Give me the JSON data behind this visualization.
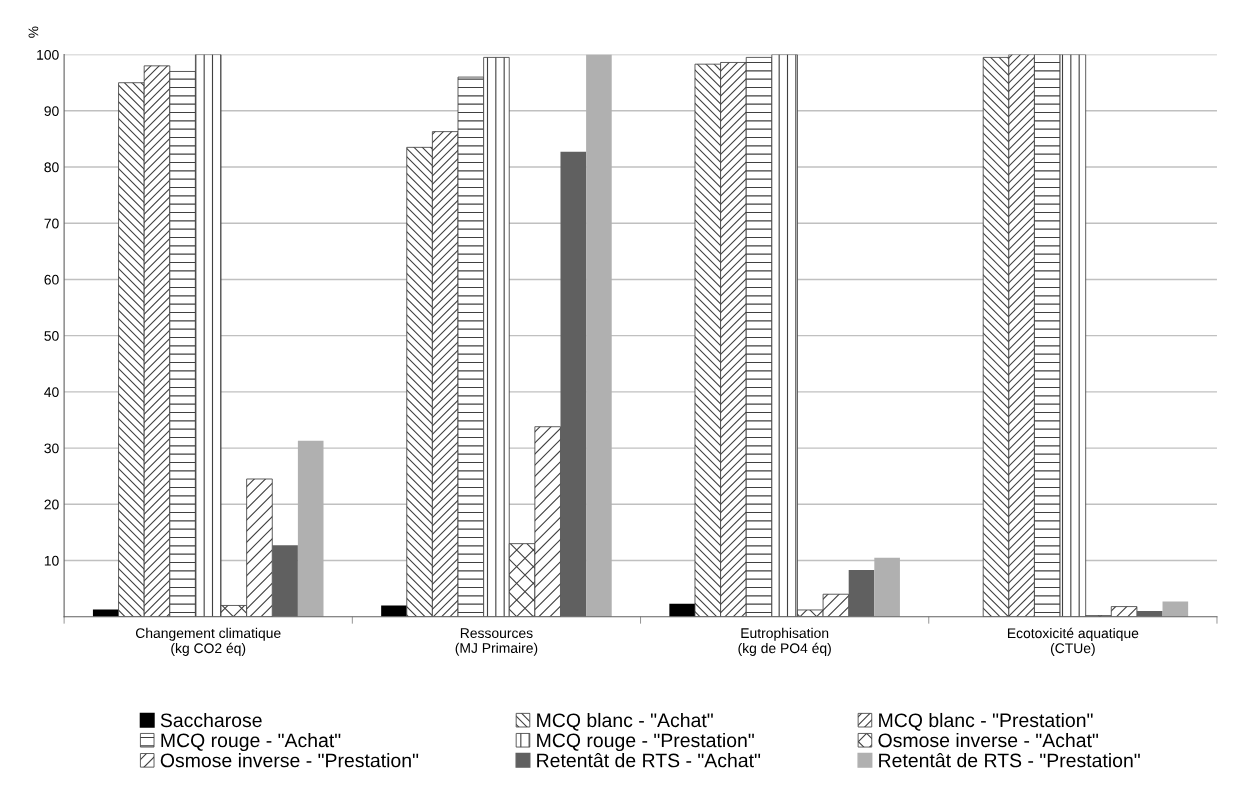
{
  "chart_data": {
    "type": "bar",
    "ylabel": "%",
    "categories": [
      "Changement climatique\n(kg CO2 éq)",
      "Ressources\n(MJ Primaire)",
      "Eutrophisation\n(kg de PO4 éq)",
      "Ecotoxicité aquatique\n(CTUe)"
    ],
    "series": [
      {
        "name": "Saccharose",
        "color": "#000000",
        "values": [
          1.3,
          2,
          2.3,
          0
        ]
      },
      {
        "name": "MCQ blanc - \"Achat\"",
        "color": "#404040",
        "values": [
          95,
          83.5,
          98.3,
          99.5
        ]
      },
      {
        "name": "MCQ blanc - \"Prestation\"",
        "color": "#404040",
        "values": [
          98,
          86.3,
          98.6,
          100
        ]
      },
      {
        "name": "MCQ rouge - \"Achat\"",
        "color": "#404040",
        "values": [
          97,
          96,
          99.5,
          100
        ]
      },
      {
        "name": "MCQ rouge - \"Prestation\"",
        "color": "#404040",
        "values": [
          100,
          99.5,
          100,
          100
        ]
      },
      {
        "name": "Osmose inverse - \"Achat\"",
        "color": "#404040",
        "values": [
          2,
          13,
          1.2,
          0.2
        ]
      },
      {
        "name": "Osmose inverse - \"Prestation\"",
        "color": "#404040",
        "values": [
          24.5,
          33.8,
          4,
          1.8
        ]
      },
      {
        "name": "Retentât de RTS - \"Achat\"",
        "color": "#606060",
        "values": [
          12.7,
          82.7,
          8.3,
          1
        ]
      },
      {
        "name": "Retentât de RTS - \"Prestation\"",
        "color": "#b0b0b0",
        "values": [
          31.3,
          100,
          10.5,
          2.7
        ]
      }
    ],
    "ylim": [
      0,
      100
    ],
    "yticks": [
      10,
      20,
      30,
      40,
      50,
      60,
      70,
      80,
      90,
      100
    ],
    "grid": "y",
    "legend": "bottom"
  }
}
